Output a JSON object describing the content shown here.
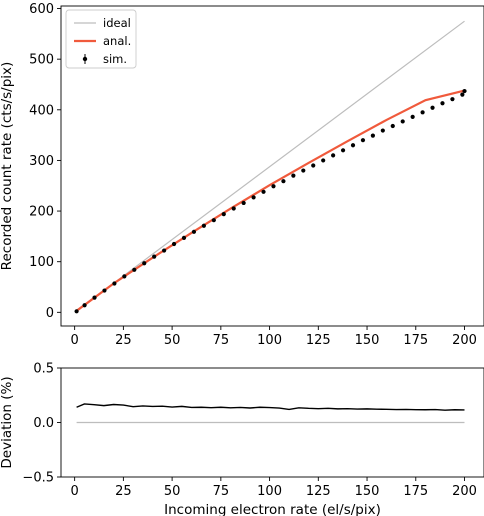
{
  "chart_data": [
    {
      "type": "scatter",
      "xlabel": "",
      "ylabel": "Recorded count rate (cts/s/pix)",
      "xlim": [
        -7,
        210
      ],
      "ylim": [
        -27,
        605
      ],
      "x_ticks": [
        0,
        25,
        50,
        75,
        100,
        125,
        150,
        175,
        200
      ],
      "y_ticks": [
        0,
        100,
        200,
        300,
        400,
        500,
        600
      ],
      "x_tick_labels": [
        "0",
        "25",
        "50",
        "75",
        "100",
        "125",
        "150",
        "175",
        "200"
      ],
      "y_tick_labels": [
        "0",
        "100",
        "200",
        "300",
        "400",
        "500",
        "600"
      ],
      "grid": false,
      "legend": {
        "position": "top-left",
        "entries": [
          {
            "label": "ideal",
            "color": "#bdbdbd",
            "marker": "line"
          },
          {
            "label": "anal.",
            "color": "#f05a3c",
            "marker": "line"
          },
          {
            "label": "sim.",
            "color": "#000000",
            "marker": "errorbar-dot"
          }
        ]
      },
      "series": [
        {
          "name": "ideal",
          "kind": "line",
          "color": "#bdbdbd",
          "x": [
            1,
            200
          ],
          "y": [
            2.9,
            575
          ]
        },
        {
          "name": "anal.",
          "kind": "line",
          "color": "#f05a3c",
          "x": [
            1,
            20,
            40,
            60,
            80,
            100,
            120,
            140,
            160,
            180,
            200
          ],
          "y": [
            3,
            57,
            108,
            157,
            205,
            251,
            295,
            338,
            380,
            419,
            438
          ]
        },
        {
          "name": "sim.",
          "kind": "points",
          "color": "#000000",
          "x": [
            1,
            5.1,
            10.2,
            15.3,
            20.4,
            25.5,
            30.6,
            35.7,
            40.8,
            45.9,
            51.0,
            56.1,
            61.2,
            66.3,
            71.4,
            76.5,
            81.6,
            86.7,
            91.8,
            96.9,
            102.0,
            107.1,
            112.2,
            117.3,
            122.4,
            127.5,
            132.6,
            137.7,
            142.8,
            147.9,
            153.0,
            158.1,
            163.2,
            168.3,
            173.4,
            178.5,
            183.6,
            188.7,
            193.8,
            198.9,
            200
          ],
          "y": [
            2,
            14,
            29,
            43,
            57,
            71,
            84,
            97,
            110,
            122,
            135,
            147,
            159,
            171,
            182,
            194,
            205,
            216,
            227,
            238,
            249,
            259,
            270,
            280,
            290,
            300,
            310,
            320,
            330,
            340,
            349,
            359,
            368,
            377,
            386,
            395,
            404,
            413,
            421,
            430,
            437
          ]
        }
      ]
    },
    {
      "type": "line",
      "xlabel": "Incoming electron rate (el/s/pix)",
      "ylabel": "Deviation (%)",
      "xlim": [
        -7,
        210
      ],
      "ylim": [
        -0.5,
        0.5
      ],
      "x_ticks": [
        0,
        25,
        50,
        75,
        100,
        125,
        150,
        175,
        200
      ],
      "y_ticks": [
        -0.5,
        0.0,
        0.5
      ],
      "x_tick_labels": [
        "0",
        "25",
        "50",
        "75",
        "100",
        "125",
        "150",
        "175",
        "200"
      ],
      "y_tick_labels": [
        "−0.5",
        "0.0",
        "0.5"
      ],
      "grid": false,
      "series": [
        {
          "kind": "line",
          "color": "#bdbdbd",
          "x": [
            1,
            200
          ],
          "y": [
            0,
            0
          ]
        },
        {
          "kind": "line",
          "color": "#000000",
          "x": [
            1,
            5,
            10,
            15,
            20,
            25,
            30,
            35,
            40,
            45,
            50,
            55,
            60,
            65,
            70,
            75,
            80,
            85,
            90,
            95,
            100,
            105,
            110,
            115,
            120,
            125,
            130,
            135,
            140,
            145,
            150,
            155,
            160,
            165,
            170,
            175,
            180,
            185,
            190,
            195,
            200
          ],
          "y": [
            0.14,
            0.17,
            0.163,
            0.155,
            0.165,
            0.16,
            0.145,
            0.152,
            0.147,
            0.15,
            0.142,
            0.148,
            0.138,
            0.14,
            0.136,
            0.14,
            0.135,
            0.138,
            0.133,
            0.14,
            0.137,
            0.132,
            0.12,
            0.135,
            0.13,
            0.127,
            0.13,
            0.125,
            0.127,
            0.123,
            0.125,
            0.122,
            0.121,
            0.119,
            0.12,
            0.118,
            0.117,
            0.119,
            0.113,
            0.117,
            0.115
          ]
        }
      ]
    }
  ]
}
